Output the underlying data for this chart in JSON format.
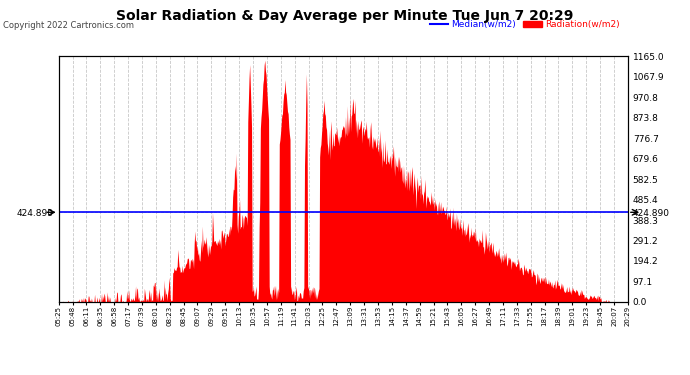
{
  "title": "Solar Radiation & Day Average per Minute Tue Jun 7 20:29",
  "copyright": "Copyright 2022 Cartronics.com",
  "legend_median": "Median(w/m2)",
  "legend_radiation": "Radiation(w/m2)",
  "median_value": 424.89,
  "y_right_labels": [
    1165.0,
    1067.9,
    970.8,
    873.8,
    776.7,
    679.6,
    582.5,
    485.4,
    388.3,
    291.2,
    194.2,
    97.1,
    0.0
  ],
  "background_color": "#ffffff",
  "fill_color": "#ff0000",
  "line_color": "#0000ff",
  "grid_color": "#c8c8c8",
  "title_color": "#000000",
  "copyright_color": "#000000",
  "median_legend_color": "#0000ff",
  "radiation_legend_color": "#ff0000",
  "x_tick_labels": [
    "05:25",
    "05:48",
    "06:11",
    "06:35",
    "06:58",
    "07:17",
    "07:39",
    "08:01",
    "08:23",
    "08:45",
    "09:07",
    "09:29",
    "09:51",
    "10:13",
    "10:35",
    "10:57",
    "11:19",
    "11:41",
    "12:03",
    "12:25",
    "12:47",
    "13:09",
    "13:31",
    "13:53",
    "14:15",
    "14:37",
    "14:59",
    "15:21",
    "15:43",
    "16:05",
    "16:27",
    "16:49",
    "17:11",
    "17:33",
    "17:55",
    "18:17",
    "18:39",
    "19:01",
    "19:23",
    "19:45",
    "20:07",
    "20:29"
  ],
  "y_max": 1165.0,
  "y_min": 0.0,
  "figwidth": 6.9,
  "figheight": 3.75,
  "dpi": 100
}
